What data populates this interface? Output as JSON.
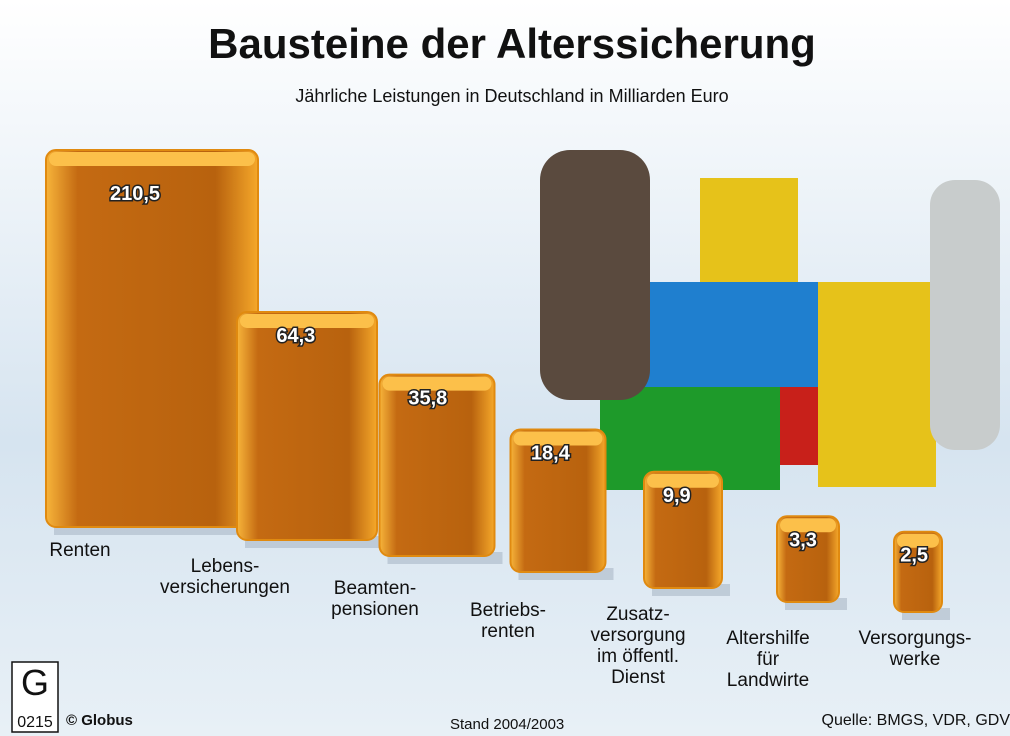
{
  "chart_data": {
    "type": "bar",
    "title": "Bausteine der Alterssicherung",
    "subtitle": "Jährliche Leistungen in Deutschland in Milliarden Euro",
    "categories": [
      "Renten",
      "Lebens-\nversicherungen",
      "Beamten-\npensionen",
      "Betriebs-\nrenten",
      "Zusatz-\nversorgung\nim öffentl.\nDienst",
      "Altershilfe\nfür\nLandwirte",
      "Versorgungs-\nwerke"
    ],
    "values": [
      210.5,
      64.3,
      35.8,
      18.4,
      9.9,
      3.3,
      2.5
    ],
    "value_labels": [
      "210,5",
      "64,3",
      "35,8",
      "18,4",
      "9,9",
      "3,3",
      "2,5"
    ],
    "color": "#f0a020"
  },
  "footer": {
    "logo_number": "0215",
    "logo_letter": "G",
    "copyright": "© Globus",
    "date": "Stand 2004/2003",
    "source": "Quelle: BMGS, VDR, GDV"
  }
}
